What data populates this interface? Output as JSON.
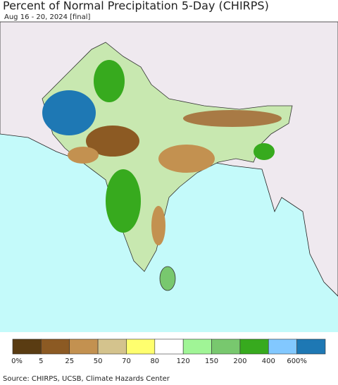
{
  "title": "Percent of Normal Precipitation 5-Day (CHIRPS)",
  "subtitle": "Aug 16 - 20, 2024 [final]",
  "legend": {
    "labels": [
      "0%",
      "5",
      "25",
      "50",
      "70",
      "80",
      "120",
      "150",
      "200",
      "400",
      "600%"
    ],
    "colors": [
      "#5a3c12",
      "#8c5a23",
      "#c39150",
      "#d4c38d",
      "#ffff6e",
      "#ffffff",
      "#a0f596",
      "#78c86e",
      "#37aa1e",
      "#82c8ff",
      "#1e78b4"
    ]
  },
  "source": "Source: CHIRPS, UCSB, Climate Hazards Center"
}
